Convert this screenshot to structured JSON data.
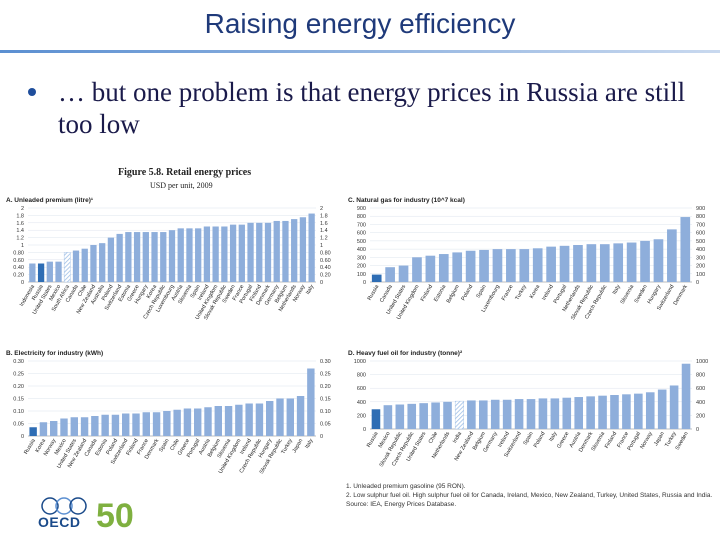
{
  "slide": {
    "title": "Raising energy efficiency",
    "bullet": "… but one problem is that energy prices in Russia are still too low"
  },
  "figure": {
    "title": "Figure 5.8. Retail energy prices",
    "subtitle": "USD per unit, 2009",
    "notes": [
      "1. Unleaded premium gasoline (95 RON).",
      "2. Low sulphur fuel oil. High sulphur fuel oil for Canada, Ireland, Mexico, New Zealand, Turkey, United States, Russia and India.",
      "Source: IEA, Energy Prices Database."
    ]
  },
  "colors": {
    "bar": "#8eaedb",
    "highlight": "#2e6db4",
    "hatch": "#9fbfe6",
    "title": "#1f3a7a"
  },
  "logo": {
    "org": "OECD",
    "number": "50"
  },
  "chart_data": [
    {
      "type": "bar",
      "title": "A. Unleaded premium (litre)¹",
      "categories": [
        "Indonesia",
        "Russia",
        "United States",
        "Mexico",
        "South Africa",
        "Canada",
        "Chile",
        "New Zealand",
        "Australia",
        "Poland",
        "Switzerland",
        "Estonia",
        "Greece",
        "Hungary",
        "Korea",
        "Czech Republic",
        "Luxembourg",
        "Austria",
        "Slovenia",
        "Spain",
        "Ireland",
        "United Kingdom",
        "Slovak Republic",
        "Sweden",
        "France",
        "Portugal",
        "Finland",
        "Denmark",
        "Germany",
        "Belgium",
        "Netherlands",
        "Norway",
        "Italy"
      ],
      "values": [
        0.5,
        0.5,
        0.55,
        0.55,
        0.8,
        0.85,
        0.9,
        1.0,
        1.05,
        1.2,
        1.3,
        1.35,
        1.35,
        1.35,
        1.35,
        1.35,
        1.4,
        1.45,
        1.45,
        1.45,
        1.5,
        1.5,
        1.5,
        1.55,
        1.55,
        1.6,
        1.6,
        1.6,
        1.65,
        1.65,
        1.7,
        1.75,
        1.85
      ],
      "highlight_index": 1,
      "hatched_index": 4,
      "yticks": [
        0,
        0.2,
        0.4,
        0.6,
        0.8,
        1.0,
        1.2,
        1.4,
        1.6,
        1.8,
        2.0
      ],
      "ylim": [
        0,
        2.0
      ]
    },
    {
      "type": "bar",
      "title": "C. Natural gas for industry (10^7 kcal)",
      "categories": [
        "Russia",
        "Canada",
        "United States",
        "United Kingdom",
        "Finland",
        "Estonia",
        "Belgium",
        "Poland",
        "Spain",
        "Luxembourg",
        "France",
        "Turkey",
        "Korea",
        "Ireland",
        "Portugal",
        "Netherlands",
        "Slovak Republic",
        "Czech Republic",
        "Italy",
        "Slovenia",
        "Sweden",
        "Hungary",
        "Switzerland",
        "Denmark"
      ],
      "values": [
        90,
        180,
        200,
        300,
        320,
        340,
        360,
        380,
        390,
        400,
        400,
        400,
        410,
        430,
        440,
        450,
        460,
        460,
        470,
        480,
        500,
        520,
        640,
        790
      ],
      "highlight_index": 0,
      "hatched_index": -1,
      "yticks": [
        0,
        100,
        200,
        300,
        400,
        500,
        600,
        700,
        800,
        900
      ],
      "ylim": [
        0,
        900
      ]
    },
    {
      "type": "bar",
      "title": "B. Electricity for industry (kWh)",
      "categories": [
        "Russia",
        "Korea",
        "Norway",
        "Mexico",
        "United States",
        "New Zealand",
        "Canada",
        "Estonia",
        "Poland",
        "Switzerland",
        "Finland",
        "France",
        "Denmark",
        "Spain",
        "Chile",
        "Greece",
        "Portugal",
        "Austria",
        "Belgium",
        "Slovenia",
        "United Kingdom",
        "Ireland",
        "Czech Republic",
        "Hungary",
        "Slovak Republic",
        "Turkey",
        "Japan",
        "Italy"
      ],
      "values": [
        0.035,
        0.055,
        0.06,
        0.07,
        0.075,
        0.075,
        0.08,
        0.085,
        0.085,
        0.09,
        0.09,
        0.095,
        0.095,
        0.1,
        0.105,
        0.11,
        0.11,
        0.115,
        0.12,
        0.12,
        0.125,
        0.13,
        0.13,
        0.14,
        0.15,
        0.15,
        0.16,
        0.27
      ],
      "highlight_index": 0,
      "hatched_index": -1,
      "yticks": [
        0,
        0.05,
        0.1,
        0.15,
        0.2,
        0.25,
        0.3
      ],
      "ylim": [
        0,
        0.3
      ]
    },
    {
      "type": "bar",
      "title": "D. Heavy fuel oil for industry (tonne)²",
      "categories": [
        "Russia",
        "Mexico",
        "Slovak Republic",
        "Czech Republic",
        "United States",
        "Chile",
        "Netherlands",
        "India",
        "New Zealand",
        "Belgium",
        "Germany",
        "Ireland",
        "Switzerland",
        "Spain",
        "Poland",
        "Italy",
        "Greece",
        "Austria",
        "Denmark",
        "Slovenia",
        "Finland",
        "France",
        "Portugal",
        "Norway",
        "Japan",
        "Turkey",
        "Sweden"
      ],
      "values": [
        290,
        350,
        360,
        370,
        380,
        390,
        400,
        410,
        420,
        420,
        430,
        430,
        440,
        440,
        450,
        450,
        460,
        470,
        480,
        490,
        500,
        510,
        520,
        540,
        580,
        640,
        960
      ],
      "highlight_index": 0,
      "hatched_index": 7,
      "yticks": [
        0,
        200,
        400,
        600,
        800,
        1000
      ],
      "ylim": [
        0,
        1000
      ]
    }
  ]
}
